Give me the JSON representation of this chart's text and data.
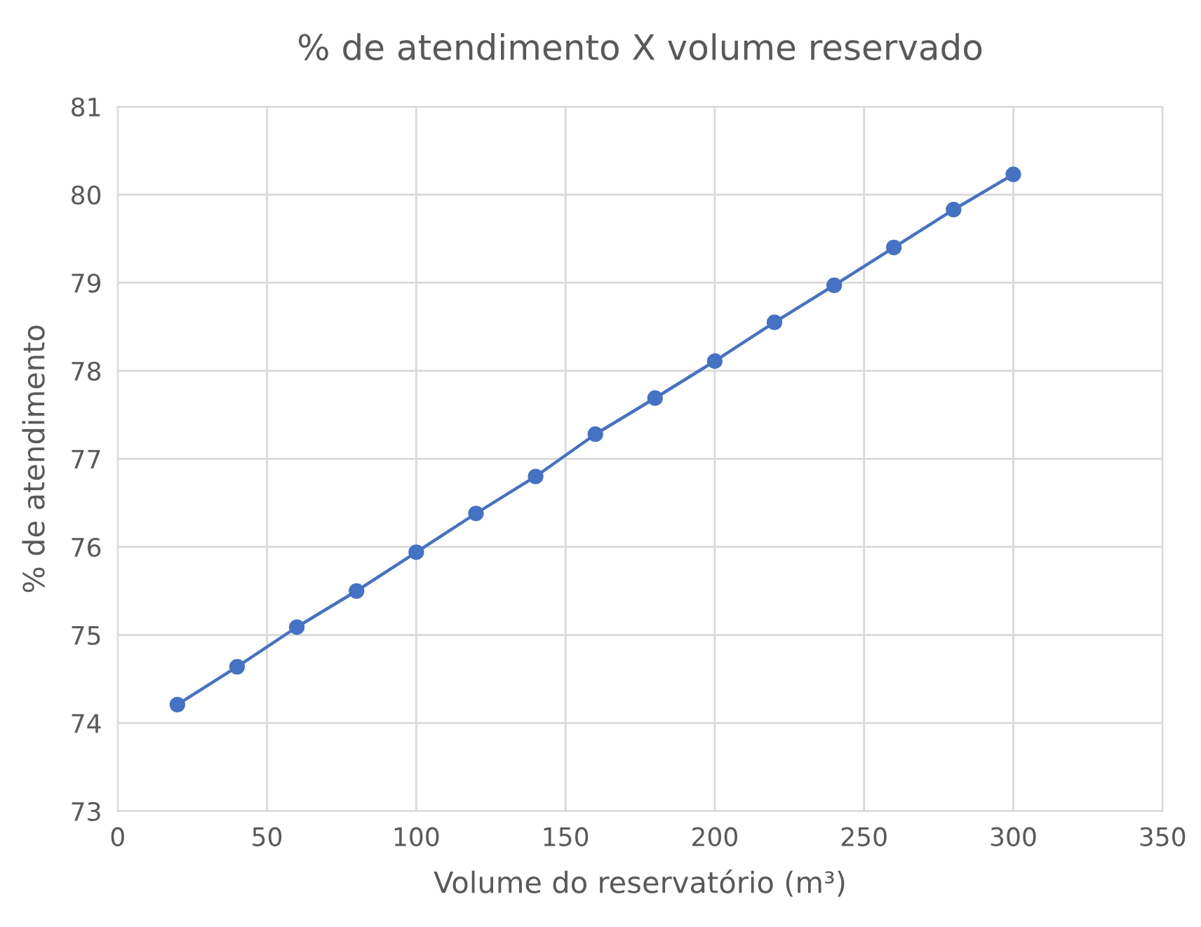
{
  "chart_data": {
    "type": "line",
    "title": "% de atendimento X volume reservado",
    "xlabel": "Volume do reservatório (m³)",
    "ylabel": "% de atendimento",
    "x": [
      20,
      40,
      60,
      80,
      100,
      120,
      140,
      160,
      180,
      200,
      220,
      240,
      260,
      280,
      300
    ],
    "series": [
      {
        "color": "#4472c4",
        "values": [
          74.21,
          74.64,
          75.09,
          75.5,
          75.94,
          76.38,
          76.8,
          77.28,
          77.69,
          78.11,
          78.55,
          78.97,
          79.4,
          79.83,
          80.23
        ]
      }
    ],
    "xlim": [
      0,
      350
    ],
    "xticks": [
      0,
      50,
      100,
      150,
      200,
      250,
      300,
      350
    ],
    "ylim": [
      73,
      81
    ],
    "yticks": [
      73,
      74,
      75,
      76,
      77,
      78,
      79,
      80,
      81
    ],
    "grid": true,
    "marker": "circle",
    "line_style": "solid"
  }
}
